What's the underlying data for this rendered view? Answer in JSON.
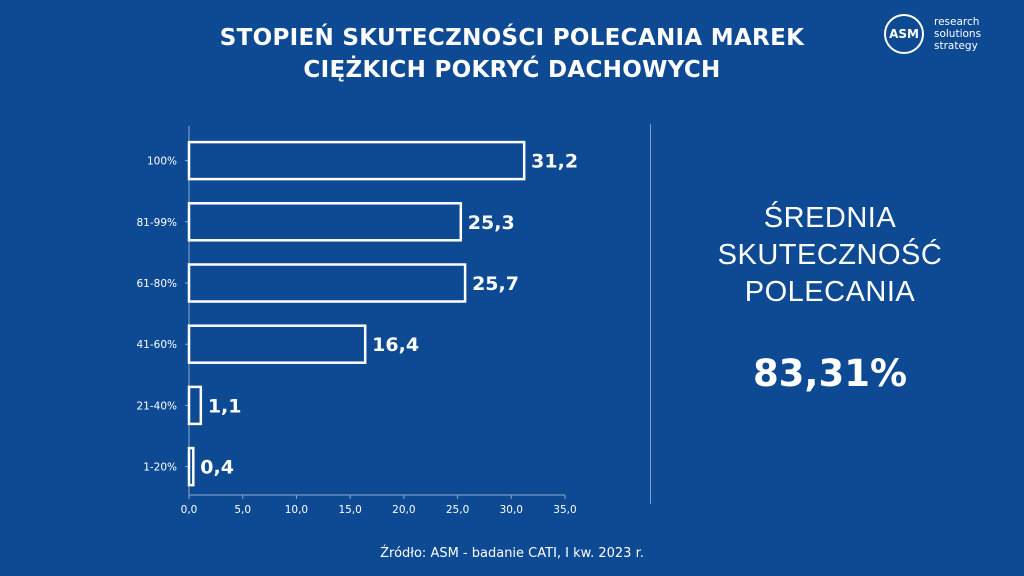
{
  "title_lines": [
    "STOPIEŃ SKUTECZNOŚCI POLECANIA MAREK",
    "CIĘŻKICH POKRYĆ DACHOWYCH"
  ],
  "logo": {
    "mark": "ASM",
    "lines": [
      "research",
      "solutions",
      "strategy"
    ]
  },
  "summary": {
    "label_lines": [
      "ŚREDNIA",
      "SKUTECZNOŚĆ",
      "POLECANIA"
    ],
    "value": "83,31%"
  },
  "source": "Źródło: ASM - badanie CATI, I kw. 2023 r.",
  "colors": {
    "background": "#0d4a93",
    "foreground": "#ffffff"
  },
  "chart_data": {
    "type": "bar",
    "orientation": "horizontal",
    "bar_style": "outlined",
    "categories": [
      "100%",
      "81-99%",
      "61-80%",
      "41-60%",
      "21-40%",
      "1-20%"
    ],
    "values": [
      31.2,
      25.3,
      25.7,
      16.4,
      1.1,
      0.4
    ],
    "value_labels": [
      "31,2",
      "25,3",
      "25,7",
      "16,4",
      "1,1",
      "0,4"
    ],
    "xlim": [
      0,
      35
    ],
    "xticks": [
      0,
      5,
      10,
      15,
      20,
      25,
      30,
      35
    ],
    "xtick_labels": [
      "0,0",
      "5,0",
      "10,0",
      "15,0",
      "20,0",
      "25,0",
      "30,0",
      "35,0"
    ],
    "grid": false,
    "title": "",
    "xlabel": "",
    "ylabel": ""
  }
}
